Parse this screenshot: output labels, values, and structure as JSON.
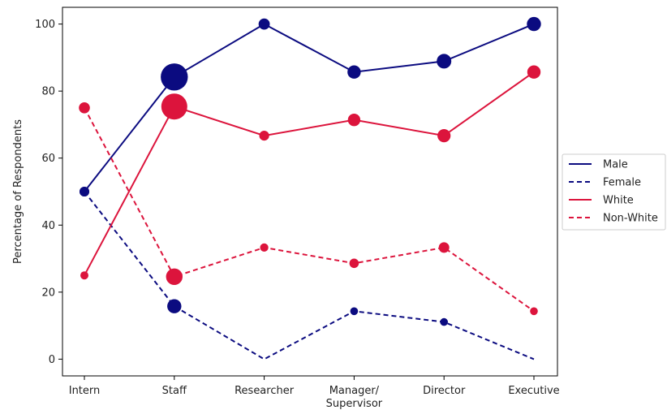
{
  "chart_data": {
    "type": "line",
    "title": "",
    "xlabel": "",
    "ylabel": "Percentage of Respondents",
    "categories": [
      "Intern",
      "Staff",
      "Researcher",
      "Manager/\nSupervisor",
      "Director",
      "Executive"
    ],
    "ylim": [
      -5,
      105
    ],
    "yticks": [
      0,
      20,
      40,
      60,
      80,
      100
    ],
    "grid": false,
    "legend_position": "outside-right",
    "series": [
      {
        "name": "Male",
        "values": [
          50,
          84.2,
          100,
          85.7,
          88.9,
          100
        ],
        "color": "#0b0b80",
        "dash": false
      },
      {
        "name": "Female",
        "values": [
          50,
          15.8,
          0,
          14.3,
          11.1,
          0
        ],
        "color": "#0b0b80",
        "dash": true
      },
      {
        "name": "White",
        "values": [
          25,
          75.4,
          66.7,
          71.4,
          66.7,
          85.7
        ],
        "color": "#dc143c",
        "dash": false
      },
      {
        "name": "Non-White",
        "values": [
          75,
          24.6,
          33.3,
          28.6,
          33.3,
          14.3
        ],
        "color": "#dc143c",
        "dash": true
      }
    ],
    "group_sizes": [
      4,
      57,
      3,
      7,
      9,
      7
    ]
  }
}
